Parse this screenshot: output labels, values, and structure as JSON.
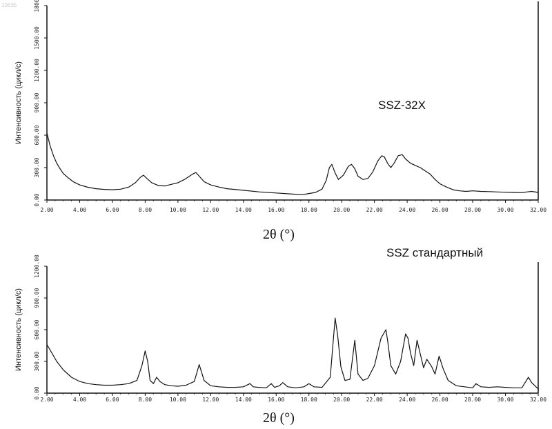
{
  "corner_id": "10635",
  "chart_data": [
    {
      "type": "line",
      "title": "SSZ-32X",
      "ylabel": "Интенсивность (цикл/с)",
      "xlabel": "2θ (°)",
      "xlim": [
        2,
        32
      ],
      "ylim": [
        0,
        1800
      ],
      "xticks": [
        "2.00",
        "4.00",
        "6.00",
        "8.00",
        "10.00",
        "12.00",
        "14.00",
        "16.00",
        "18.00",
        "20.00",
        "22.00",
        "24.00",
        "26.00",
        "28.00",
        "30.00",
        "32.00"
      ],
      "yticks": [
        "0.00",
        "300.00",
        "600.00",
        "900.00",
        "1200.00",
        "1500.00",
        "1800"
      ],
      "series": [
        {
          "x": [
            2.0,
            2.2,
            2.4,
            2.6,
            2.8,
            3.0,
            3.3,
            3.6,
            4.0,
            4.5,
            5.0,
            5.5,
            6.0,
            6.5,
            7.0,
            7.4,
            7.7,
            7.9,
            8.1,
            8.4,
            8.8,
            9.2,
            9.6,
            10.0,
            10.4,
            10.7,
            10.9,
            11.1,
            11.3,
            11.6,
            12.0,
            12.5,
            13.0,
            14.0,
            15.0,
            16.0,
            17.0,
            17.6,
            18.0,
            18.4,
            18.8,
            19.05,
            19.25,
            19.4,
            19.6,
            19.8,
            20.1,
            20.4,
            20.6,
            20.8,
            21.0,
            21.3,
            21.6,
            21.9,
            22.2,
            22.45,
            22.6,
            22.8,
            23.0,
            23.2,
            23.45,
            23.7,
            23.9,
            24.2,
            24.5,
            24.8,
            25.1,
            25.4,
            25.7,
            26.0,
            26.4,
            26.8,
            27.2,
            27.6,
            28.0,
            28.5,
            29.0,
            29.5,
            30.0,
            30.5,
            31.0,
            31.3,
            31.6,
            32.0
          ],
          "y": [
            620,
            500,
            410,
            340,
            290,
            245,
            205,
            170,
            140,
            118,
            105,
            98,
            95,
            100,
            120,
            160,
            210,
            230,
            200,
            160,
            135,
            130,
            145,
            160,
            190,
            220,
            240,
            255,
            220,
            170,
            140,
            120,
            105,
            90,
            75,
            65,
            55,
            50,
            60,
            70,
            100,
            180,
            300,
            330,
            250,
            190,
            230,
            310,
            330,
            290,
            220,
            190,
            200,
            260,
            360,
            410,
            400,
            340,
            300,
            340,
            410,
            420,
            380,
            340,
            320,
            300,
            270,
            240,
            190,
            150,
            120,
            95,
            85,
            80,
            85,
            80,
            78,
            75,
            72,
            70,
            68,
            75,
            80,
            70
          ]
        }
      ]
    },
    {
      "type": "line",
      "title": "SSZ стандартный",
      "ylabel": "Интенсивность (цикл/с)",
      "xlabel": "2θ (°)",
      "xlim": [
        2,
        32
      ],
      "ylim": [
        0,
        1200
      ],
      "xticks": [
        "2.00",
        "4.00",
        "6.00",
        "8.00",
        "10.00",
        "12.00",
        "14.00",
        "16.00",
        "18.00",
        "20.00",
        "22.00",
        "24.00",
        "26.00",
        "28.00",
        "30.00",
        "32.00"
      ],
      "yticks": [
        "0.00",
        "300.00",
        "600.00",
        "900.00",
        "1200.00"
      ],
      "series": [
        {
          "x": [
            2.0,
            2.3,
            2.6,
            3.0,
            3.5,
            4.0,
            4.5,
            5.0,
            5.5,
            6.0,
            6.5,
            7.0,
            7.5,
            7.8,
            8.0,
            8.15,
            8.3,
            8.5,
            8.7,
            8.9,
            9.2,
            9.6,
            10.0,
            10.5,
            11.0,
            11.3,
            11.6,
            12.0,
            12.5,
            13.0,
            13.5,
            14.0,
            14.4,
            14.6,
            14.9,
            15.4,
            15.7,
            15.9,
            16.2,
            16.4,
            16.7,
            17.2,
            17.7,
            18.0,
            18.3,
            18.8,
            19.3,
            19.6,
            19.75,
            19.95,
            20.2,
            20.5,
            20.8,
            21.0,
            21.3,
            21.6,
            22.0,
            22.4,
            22.7,
            22.8,
            23.0,
            23.3,
            23.6,
            23.9,
            24.05,
            24.2,
            24.4,
            24.6,
            24.8,
            25.0,
            25.2,
            25.5,
            25.7,
            25.95,
            26.2,
            26.5,
            27.0,
            27.5,
            28.0,
            28.2,
            28.5,
            29.0,
            29.5,
            30.0,
            30.5,
            31.0,
            31.4,
            31.6,
            32.0
          ],
          "y": [
            460,
            380,
            300,
            220,
            150,
            110,
            90,
            80,
            75,
            75,
            80,
            90,
            120,
            260,
            400,
            300,
            120,
            90,
            150,
            110,
            80,
            70,
            65,
            75,
            110,
            270,
            120,
            70,
            60,
            55,
            55,
            60,
            90,
            60,
            55,
            50,
            90,
            55,
            70,
            100,
            60,
            50,
            60,
            90,
            60,
            55,
            150,
            710,
            550,
            250,
            120,
            130,
            500,
            180,
            120,
            140,
            260,
            520,
            600,
            500,
            260,
            180,
            300,
            560,
            520,
            380,
            260,
            500,
            370,
            240,
            320,
            250,
            180,
            350,
            230,
            120,
            70,
            60,
            50,
            90,
            60,
            55,
            60,
            55,
            50,
            50,
            150,
            100,
            40
          ]
        }
      ]
    }
  ]
}
